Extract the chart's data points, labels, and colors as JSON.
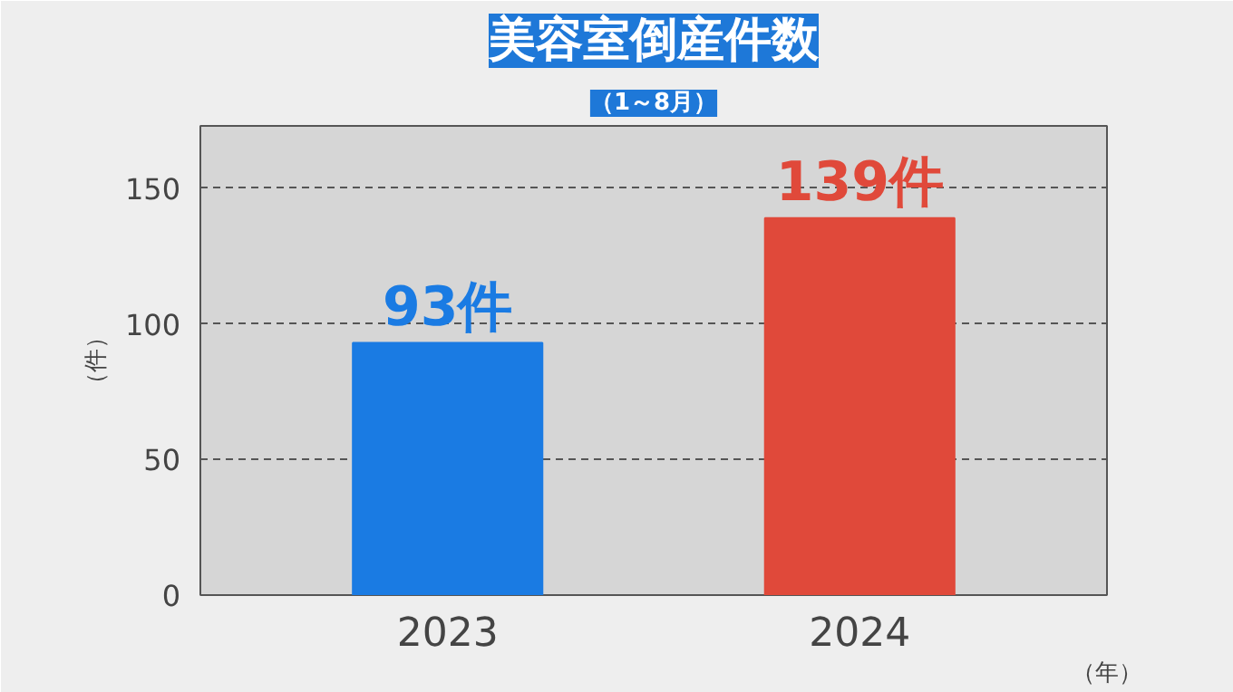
{
  "chart_data": {
    "type": "bar",
    "title": "美容室倒産件数",
    "subtitle": "（1～8月）",
    "ylabel": "（件）",
    "xlabel": "（年）",
    "categories": [
      "2023",
      "2024"
    ],
    "values": [
      93,
      139
    ],
    "colors": [
      "#1a7be3",
      "#e0493a"
    ],
    "value_labels": [
      "93件",
      "139件"
    ],
    "ylim": [
      0,
      173
    ],
    "yticks": [
      0,
      50,
      100,
      150
    ],
    "grid": "y"
  }
}
